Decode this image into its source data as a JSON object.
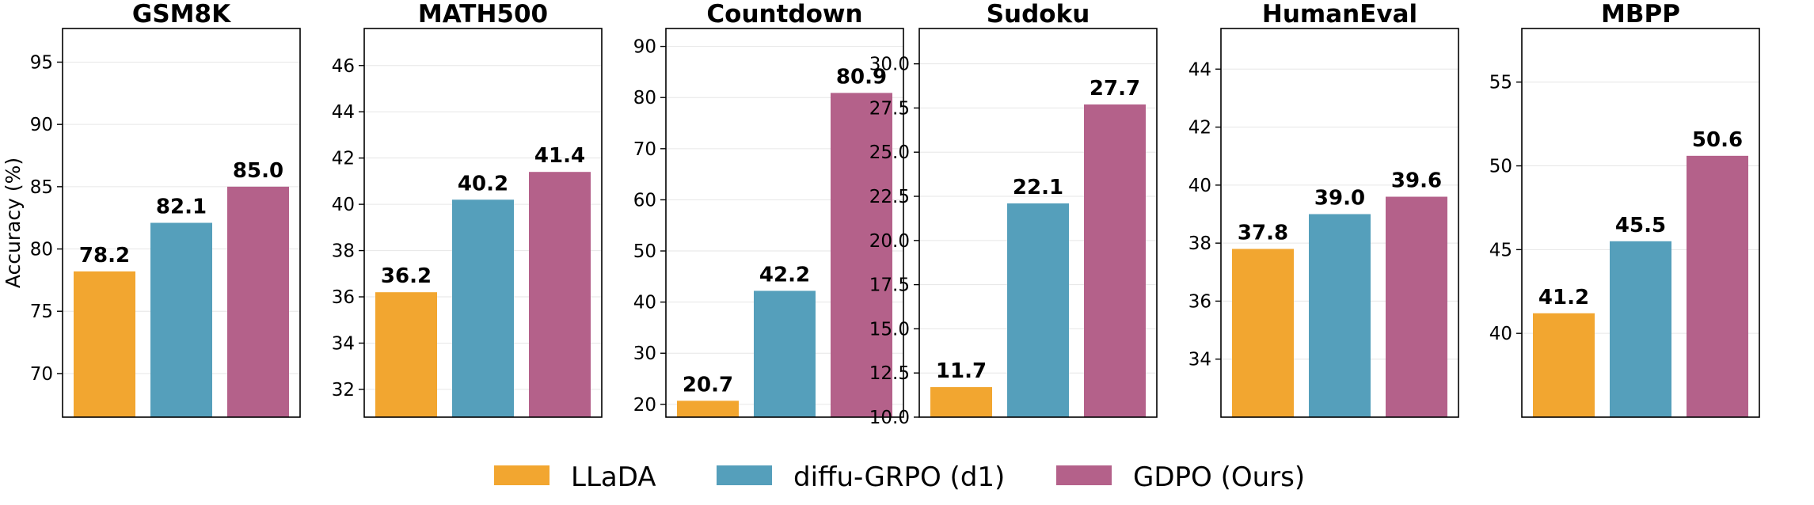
{
  "colors": {
    "LLaDA": "#F2A630",
    "diffu-GRPO (d1)": "#559FBB",
    "GDPO (Ours)": "#B4618A",
    "grid": "#e6e6e6"
  },
  "chart_data": [
    {
      "type": "bar",
      "title": "GSM8K",
      "ylabel": "Accuracy (%)",
      "ylim": [
        66.5,
        97.7
      ],
      "yticks": [
        70,
        75,
        80,
        85,
        90,
        95
      ],
      "ytick_labels": [
        "70",
        "75",
        "80",
        "85",
        "90",
        "95"
      ],
      "categories": [
        "LLaDA",
        "diffu-GRPO (d1)",
        "GDPO (Ours)"
      ],
      "values": [
        78.2,
        82.1,
        85.0
      ],
      "value_labels": [
        "78.2",
        "82.1",
        "85.0"
      ]
    },
    {
      "type": "bar",
      "title": "MATH500",
      "ylabel": "",
      "ylim": [
        30.8,
        47.6
      ],
      "yticks": [
        32,
        34,
        36,
        38,
        40,
        42,
        44,
        46
      ],
      "ytick_labels": [
        "32",
        "34",
        "36",
        "38",
        "40",
        "42",
        "44",
        "46"
      ],
      "categories": [
        "LLaDA",
        "diffu-GRPO (d1)",
        "GDPO (Ours)"
      ],
      "values": [
        36.2,
        40.2,
        41.4
      ],
      "value_labels": [
        "36.2",
        "40.2",
        "41.4"
      ]
    },
    {
      "type": "bar",
      "title": "Countdown",
      "ylabel": "",
      "ylim": [
        17.5,
        93.5
      ],
      "yticks": [
        20,
        30,
        40,
        50,
        60,
        70,
        80,
        90
      ],
      "ytick_labels": [
        "20",
        "30",
        "40",
        "50",
        "60",
        "70",
        "80",
        "90"
      ],
      "categories": [
        "LLaDA",
        "diffu-GRPO (d1)",
        "GDPO (Ours)"
      ],
      "values": [
        20.7,
        42.2,
        80.9
      ],
      "value_labels": [
        "20.7",
        "42.2",
        "80.9"
      ]
    },
    {
      "type": "bar",
      "title": "Sudoku",
      "ylabel": "",
      "ylim": [
        10.0,
        32.0
      ],
      "yticks": [
        10,
        12.5,
        15,
        17.5,
        20,
        22.5,
        25,
        27.5,
        30
      ],
      "ytick_labels": [
        "10.0",
        "12.5",
        "15.0",
        "17.5",
        "20.0",
        "22.5",
        "25.0",
        "27.5",
        "30.0"
      ],
      "categories": [
        "LLaDA",
        "diffu-GRPO (d1)",
        "GDPO (Ours)"
      ],
      "values": [
        11.7,
        22.1,
        27.7
      ],
      "value_labels": [
        "11.7",
        "22.1",
        "27.7"
      ]
    },
    {
      "type": "bar",
      "title": "HumanEval",
      "ylabel": "",
      "ylim": [
        32.0,
        45.4
      ],
      "yticks": [
        34,
        36,
        38,
        40,
        42,
        44
      ],
      "ytick_labels": [
        "34",
        "36",
        "38",
        "40",
        "42",
        "44"
      ],
      "categories": [
        "LLaDA",
        "diffu-GRPO (d1)",
        "GDPO (Ours)"
      ],
      "values": [
        37.8,
        39.0,
        39.6
      ],
      "value_labels": [
        "37.8",
        "39.0",
        "39.6"
      ]
    },
    {
      "type": "bar",
      "title": "MBPP",
      "ylabel": "",
      "ylim": [
        35.0,
        58.2
      ],
      "yticks": [
        40,
        45,
        50,
        55
      ],
      "ytick_labels": [
        "40",
        "45",
        "50",
        "55"
      ],
      "categories": [
        "LLaDA",
        "diffu-GRPO (d1)",
        "GDPO (Ours)"
      ],
      "values": [
        41.2,
        45.5,
        50.6
      ],
      "value_labels": [
        "41.2",
        "45.5",
        "50.6"
      ]
    }
  ],
  "legend": {
    "placement": "bottom-center",
    "items": [
      "LLaDA",
      "diffu-GRPO (d1)",
      "GDPO (Ours)"
    ]
  }
}
